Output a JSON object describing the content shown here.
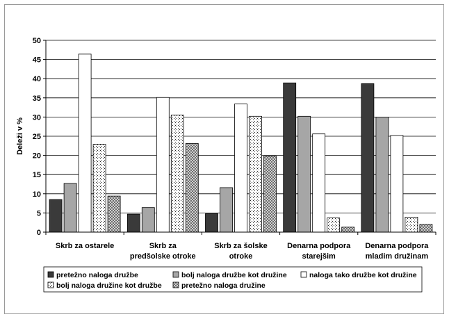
{
  "chart_data": {
    "type": "bar",
    "ylabel": "Deleži v %",
    "xlabel": "",
    "ylim": [
      0,
      50
    ],
    "yticks": [
      0,
      5,
      10,
      15,
      20,
      25,
      30,
      35,
      40,
      45,
      50
    ],
    "grid": "horizontal",
    "legend_position": "bottom",
    "categories": [
      [
        "Skrb za ostarele"
      ],
      [
        "Skrb za",
        "predšolske otroke"
      ],
      [
        "Skrb za šolske",
        "otroke"
      ],
      [
        "Denarna podpora",
        "starejšim"
      ],
      [
        "Denarna podpora",
        "mladim družinam"
      ]
    ],
    "series": [
      {
        "name": "pretežno naloga družbe",
        "fill": "#3a3a3a",
        "pattern": "solid",
        "values": [
          8.5,
          4.7,
          4.8,
          38.9,
          38.7
        ]
      },
      {
        "name": "bolj naloga družbe kot družine",
        "fill": "#a6a6a6",
        "pattern": "solid",
        "values": [
          12.7,
          6.4,
          11.6,
          30.2,
          30.0
        ]
      },
      {
        "name": "naloga tako družbe kot družine",
        "fill": "#ffffff",
        "pattern": "solid",
        "values": [
          46.4,
          35.1,
          33.4,
          25.6,
          25.2
        ]
      },
      {
        "name": "bolj naloga družine kot družbe",
        "fill": "#ffffff",
        "pattern": "dots",
        "values": [
          22.9,
          30.5,
          30.2,
          3.7,
          3.9
        ]
      },
      {
        "name": "pretežno naloga družine",
        "fill": "#8a8a8a",
        "pattern": "checker",
        "values": [
          9.4,
          23.1,
          19.8,
          1.3,
          2.0
        ]
      }
    ]
  }
}
